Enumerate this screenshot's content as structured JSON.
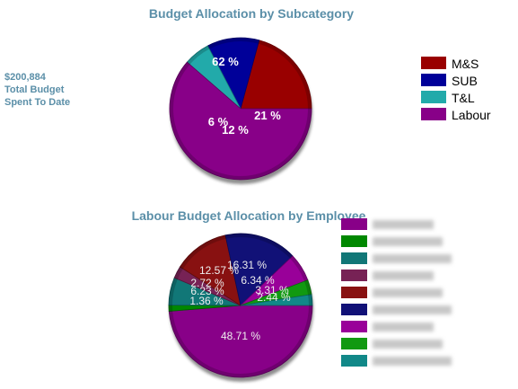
{
  "summary": {
    "amount": "$200,884",
    "line1": "Total Budget",
    "line2": "Spent To Date"
  },
  "chart_data": [
    {
      "type": "pie",
      "title": "Budget Allocation by Subcategory",
      "legend_position": "right",
      "categories": [
        "M&S",
        "SUB",
        "T&L",
        "Labour"
      ],
      "values": [
        21,
        12,
        6,
        62
      ],
      "labels": [
        "21 %",
        "12 %",
        "6 %",
        "62 %"
      ],
      "colors": [
        "#990000",
        "#000099",
        "#22aaaa",
        "#880088"
      ]
    },
    {
      "type": "pie",
      "title": "Labour Budget Allocation by Employee",
      "legend_position": "right",
      "legend_obscured": true,
      "values": [
        48.71,
        1.36,
        6.23,
        2.72,
        12.57,
        16.31,
        6.34,
        3.31,
        2.44
      ],
      "labels": [
        "48.71 %",
        "1.36 %",
        "6.23 %",
        "2.72 %",
        "12.57 %",
        "16.31 %",
        "6.34 %",
        "3.31 %",
        "2.44 %"
      ],
      "colors": [
        "#880088",
        "#008800",
        "#117777",
        "#772255",
        "#881111",
        "#111177",
        "#990099",
        "#119911",
        "#118888"
      ],
      "legend_colors": [
        "#880088",
        "#008800",
        "#117777",
        "#772255",
        "#881111",
        "#111177",
        "#990099",
        "#119911",
        "#118888"
      ]
    }
  ]
}
